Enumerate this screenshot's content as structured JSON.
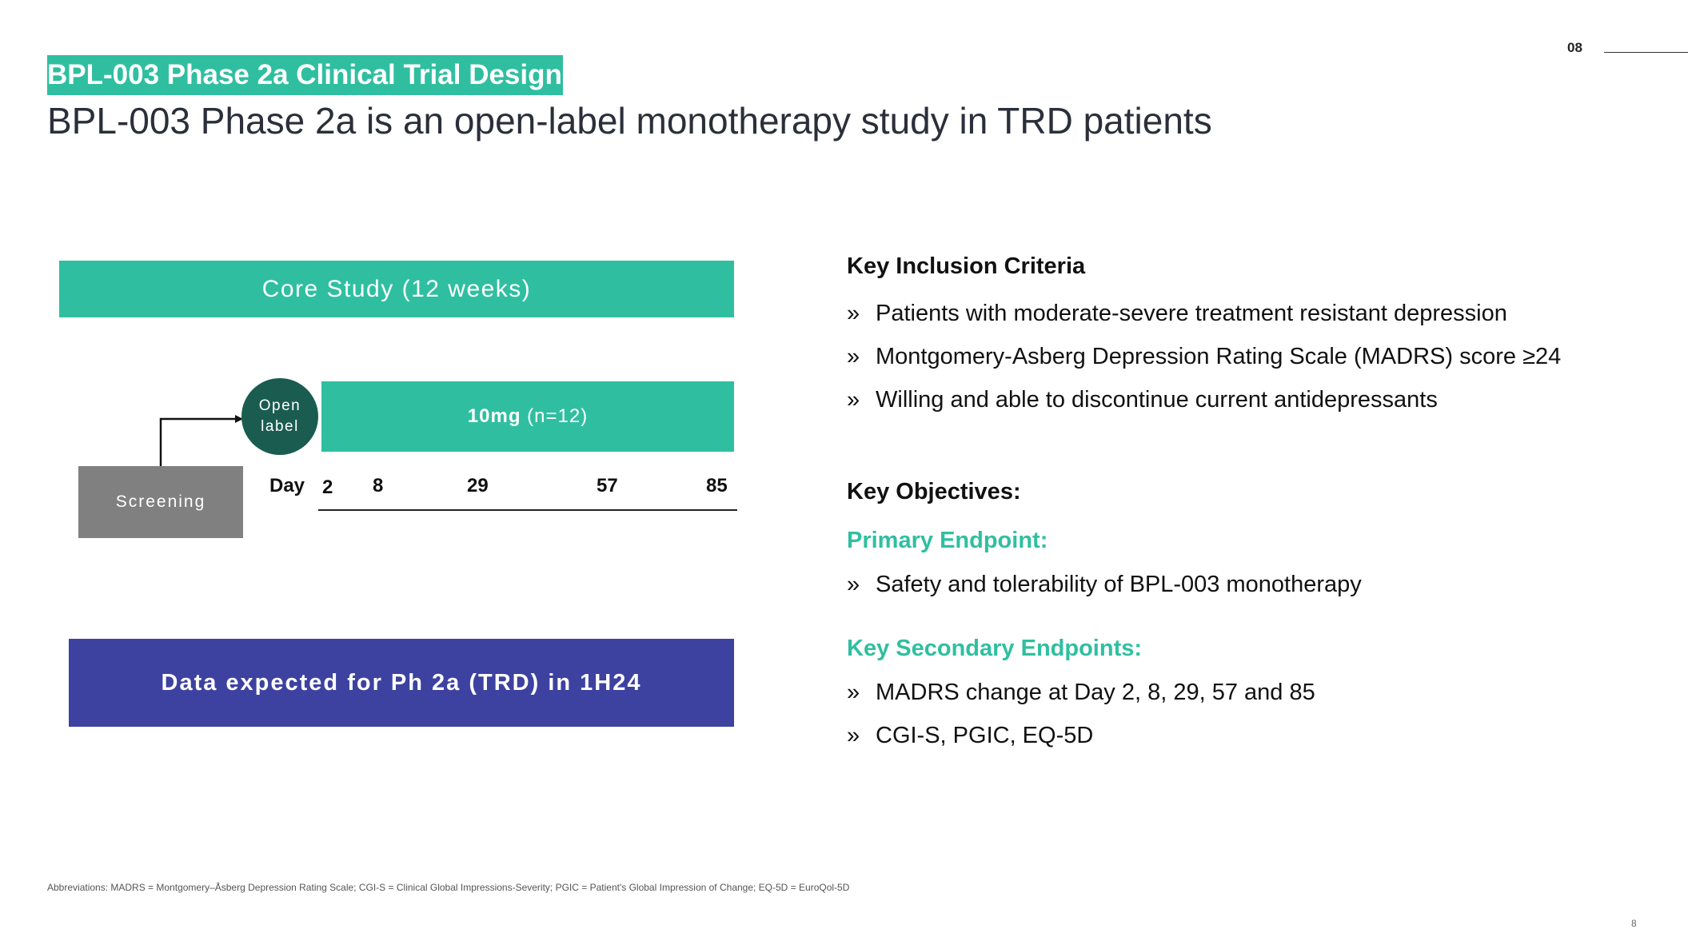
{
  "page": {
    "number": "08",
    "footer_number": "8"
  },
  "section_tag": "BPL-003 Phase 2a Clinical Trial Design",
  "headline": "BPL-003 Phase 2a is an open-label monotherapy study in TRD patients",
  "diagram": {
    "core_study": "Core Study (12 weeks)",
    "dose_bold": "10mg",
    "dose_n": " (n=12)",
    "open_label_line1": "Open",
    "open_label_line2": "label",
    "screening": "Screening",
    "day_label": "Day",
    "days": [
      "2",
      "8",
      "29",
      "57",
      "85"
    ],
    "data_expected": "Data expected for Ph 2a (TRD) in 1H24",
    "colors": {
      "teal": "#2fbfa0",
      "dark_teal": "#1a5c50",
      "grey": "#808080",
      "indigo": "#3d42a0"
    }
  },
  "inclusion": {
    "heading": "Key Inclusion Criteria",
    "bullet_glyph": "»",
    "items": [
      "Patients with moderate-severe treatment resistant depression",
      "Montgomery-Asberg Depression Rating Scale (MADRS) score ≥24",
      "Willing and able to discontinue current antidepressants"
    ]
  },
  "objectives": {
    "heading": "Key Objectives:",
    "primary_heading": "Primary Endpoint:",
    "primary_items": [
      "Safety and tolerability of BPL-003 monotherapy"
    ],
    "secondary_heading": "Key Secondary Endpoints:",
    "secondary_items": [
      "MADRS change at Day 2, 8, 29, 57 and 85",
      "CGI-S, PGIC, EQ-5D"
    ]
  },
  "abbreviations": "Abbreviations: MADRS = Montgomery–Åsberg Depression Rating Scale; CGI-S = Clinical Global Impressions-Severity; PGIC = Patient's Global Impression of Change; EQ-5D = EuroQol-5D"
}
